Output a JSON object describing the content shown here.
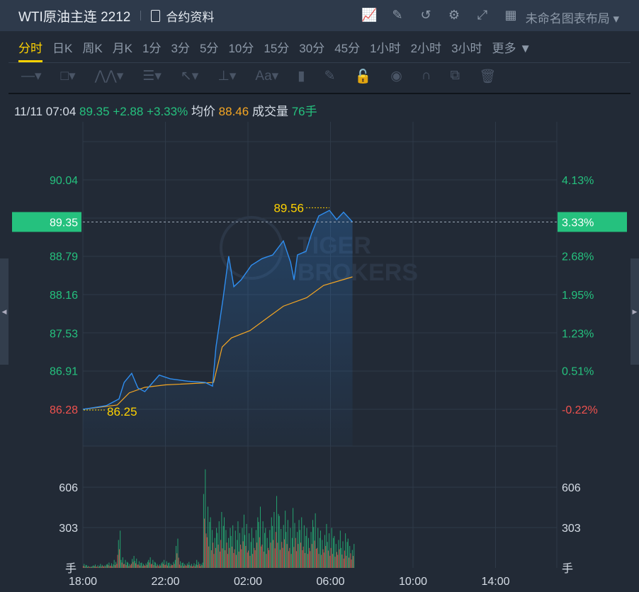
{
  "header": {
    "title": "WTI原油主连 2212",
    "contract_label": "合约资料",
    "layout_label": "未命名图表布局",
    "icons": [
      "indicator-icon",
      "draw-icon",
      "refresh-icon",
      "gear-icon",
      "fullscreen-icon",
      "grid-layout-icon"
    ]
  },
  "tabs": [
    {
      "label": "分时",
      "active": true
    },
    {
      "label": "日K"
    },
    {
      "label": "周K"
    },
    {
      "label": "月K"
    },
    {
      "label": "1分"
    },
    {
      "label": "3分"
    },
    {
      "label": "5分"
    },
    {
      "label": "10分"
    },
    {
      "label": "15分"
    },
    {
      "label": "30分"
    },
    {
      "label": "45分"
    },
    {
      "label": "1小时"
    },
    {
      "label": "2小时"
    },
    {
      "label": "3小时"
    },
    {
      "label": "更多 ▼"
    }
  ],
  "info": {
    "datetime": "11/11 07:04",
    "price": "89.35",
    "change": "+2.88",
    "change_pct": "+3.33%",
    "avg_label": "均价",
    "avg": "88.46",
    "vol_label": "成交量",
    "vol": "76手"
  },
  "colors": {
    "up": "#25c17e",
    "down": "#f0524f",
    "price_line": "#2f8ef0",
    "avg_line": "#f5a623",
    "highlight": "#ffd200"
  },
  "chart_data": {
    "type": "line",
    "watermark": "TIGER BROKERS",
    "x_ticks": [
      "18:00",
      "22:00",
      "02:00",
      "06:00",
      "10:00",
      "14:00"
    ],
    "price_ticks": [
      90.04,
      89.35,
      88.79,
      88.16,
      87.53,
      86.91,
      86.28
    ],
    "pct_ticks": [
      "4.13%",
      "3.33%",
      "2.68%",
      "1.95%",
      "1.23%",
      "0.51%",
      "-0.22%"
    ],
    "current_price": "89.35",
    "current_pct": "3.33%",
    "high_label": "89.56",
    "low_label": "86.25",
    "price_series": [
      [
        "18:00",
        86.28
      ],
      [
        "19:08",
        86.34
      ],
      [
        "19:45",
        86.45
      ],
      [
        "20:00",
        86.72
      ],
      [
        "20:22",
        86.87
      ],
      [
        "20:40",
        86.63
      ],
      [
        "21:00",
        86.57
      ],
      [
        "21:42",
        86.84
      ],
      [
        "22:14",
        86.78
      ],
      [
        "23:05",
        86.74
      ],
      [
        "23:56",
        86.72
      ],
      [
        "00:17",
        86.66
      ],
      [
        "00:27",
        87.3
      ],
      [
        "00:48",
        88.11
      ],
      [
        "01:04",
        88.79
      ],
      [
        "01:19",
        88.29
      ],
      [
        "01:40",
        88.4
      ],
      [
        "02:10",
        88.64
      ],
      [
        "02:41",
        88.75
      ],
      [
        "03:12",
        88.81
      ],
      [
        "03:43",
        89.04
      ],
      [
        "04:04",
        88.69
      ],
      [
        "04:14",
        88.4
      ],
      [
        "04:24",
        88.81
      ],
      [
        "04:49",
        88.87
      ],
      [
        "05:05",
        89.16
      ],
      [
        "05:26",
        89.45
      ],
      [
        "05:57",
        89.54
      ],
      [
        "06:18",
        89.39
      ],
      [
        "06:38",
        89.51
      ],
      [
        "07:04",
        89.35
      ]
    ],
    "avg_series": [
      [
        "18:00",
        86.28
      ],
      [
        "19:40",
        86.35
      ],
      [
        "20:15",
        86.55
      ],
      [
        "21:00",
        86.64
      ],
      [
        "22:00",
        86.68
      ],
      [
        "00:20",
        86.72
      ],
      [
        "00:45",
        87.3
      ],
      [
        "01:12",
        87.45
      ],
      [
        "02:06",
        87.57
      ],
      [
        "03:43",
        87.97
      ],
      [
        "04:51",
        88.11
      ],
      [
        "05:40",
        88.31
      ],
      [
        "07:04",
        88.45
      ]
    ],
    "volume_ticks": [
      606,
      303
    ],
    "volume_unit": "手",
    "volume_interval_min": 10,
    "volume": [
      30,
      20,
      15,
      25,
      20,
      30,
      25,
      40,
      35,
      60,
      280,
      80,
      60,
      40,
      90,
      70,
      50,
      40,
      45,
      80,
      60,
      40,
      35,
      60,
      50,
      40,
      60,
      220,
      50,
      40,
      45,
      30,
      35,
      60,
      40,
      740,
      460,
      380,
      300,
      350,
      420,
      380,
      300,
      320,
      280,
      350,
      400,
      330,
      260,
      300,
      380,
      460,
      350,
      300,
      380,
      420,
      540,
      390,
      430,
      360,
      300,
      450,
      360,
      380,
      320,
      300,
      360,
      410,
      300,
      280,
      330,
      260,
      300,
      240,
      280,
      200,
      260,
      220,
      180
    ]
  }
}
